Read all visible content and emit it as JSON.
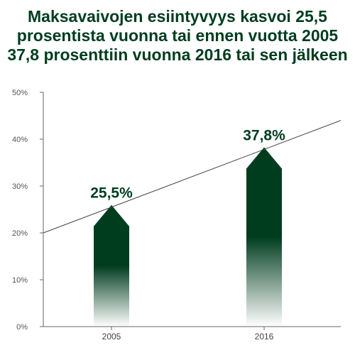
{
  "chart_data": {
    "type": "bar",
    "title": "Maksavaivojen esiintyvyys kasvoi 25,5 prosentista vuonna tai ennen vuotta 2005 37,8 prosenttiin vuonna 2016 tai sen jälkeen",
    "categories": [
      "2005",
      "2016"
    ],
    "values": [
      25.5,
      37.8
    ],
    "value_labels": [
      "25,5%",
      "37,8%"
    ],
    "ylim": [
      0,
      50
    ],
    "yticks": [
      0,
      10,
      20,
      30,
      40,
      50
    ],
    "ytick_labels": [
      "0%",
      "10%",
      "20%",
      "30%",
      "40%",
      "50%"
    ],
    "trend_line": {
      "start_value": 20,
      "end_value": 44
    },
    "grid": false,
    "bar_style": "arrow",
    "colors": {
      "bar": "#003d1f",
      "title": "#003d1f",
      "trend": "#444444",
      "axis": "#666666"
    }
  }
}
